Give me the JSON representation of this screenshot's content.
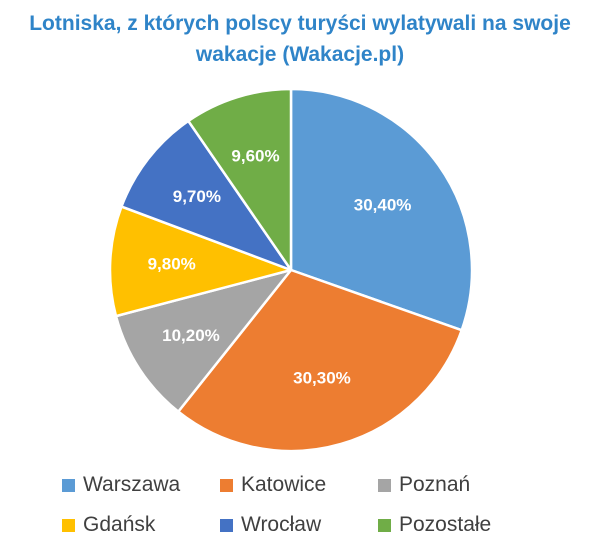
{
  "chart_data": {
    "type": "pie",
    "title": "Lotniska, z których polscy turyści wylatywali na swoje wakacje (Wakacje.pl)",
    "title_lines": [
      "Lotniska, z których polscy turyści wylatywali na swoje",
      "wakacje (Wakacje.pl)"
    ],
    "categories": [
      "Warszawa",
      "Katowice",
      "Poznań",
      "Gdańsk",
      "Wrocław",
      "Pozostałe"
    ],
    "values": [
      30.4,
      30.3,
      10.2,
      9.8,
      9.7,
      9.6
    ],
    "labels": [
      "30,40%",
      "30,30%",
      "10,20%",
      "9,80%",
      "9,70%",
      "9,60%"
    ],
    "colors": [
      "#5b9bd5",
      "#ed7d31",
      "#a5a5a5",
      "#ffc000",
      "#4472c4",
      "#70ad47"
    ],
    "legend_position": "bottom",
    "start_angle_deg": 0,
    "direction": "clockwise"
  }
}
